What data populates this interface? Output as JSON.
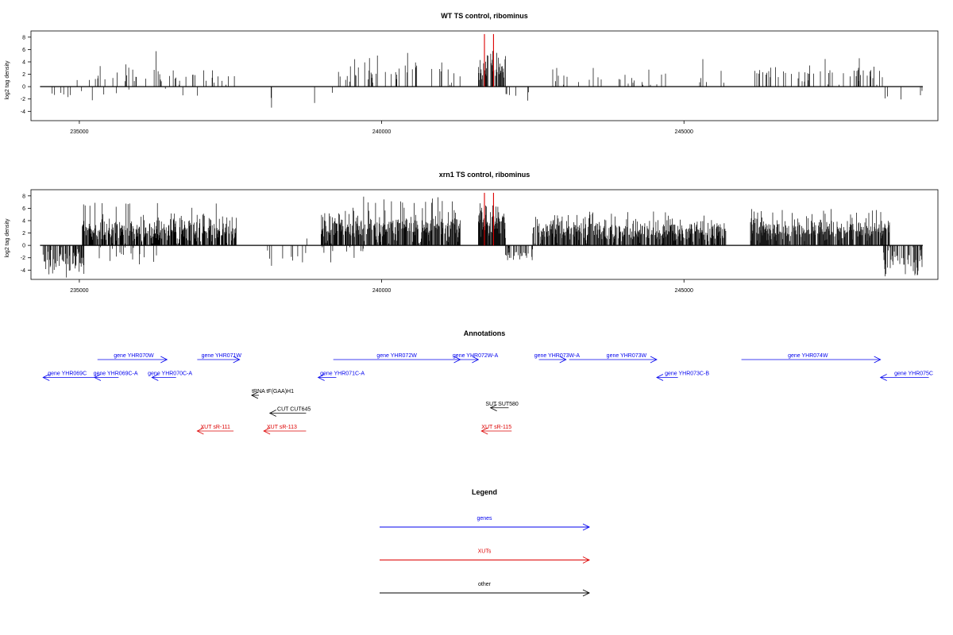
{
  "chart_data": [
    {
      "type": "bar",
      "title": "WT TS control, ribominus",
      "ylabel": "log2 tag density",
      "xlim": [
        234200,
        249200
      ],
      "ylim": [
        -5.5,
        9
      ],
      "x_ticks": [
        235000,
        240000,
        245000
      ],
      "y_ticks": [
        -4,
        -2,
        0,
        2,
        4,
        6,
        8
      ],
      "baseline": [
        234350,
        248950
      ],
      "highlight_lines": [
        {
          "x": 241700,
          "y": 8.5,
          "color": "#dd0000"
        },
        {
          "x": 241850,
          "y": 8.5,
          "color": "#dd0000"
        }
      ],
      "blocks": [
        {
          "x0": 234400,
          "x1": 235100,
          "dir": "down",
          "mean": 1.8,
          "sd": 0.7,
          "max": 3.2,
          "density": 0.06,
          "seed": 11
        },
        {
          "x0": 234950,
          "x1": 237650,
          "dir": "up",
          "mean": 1.8,
          "sd": 0.9,
          "max": 6.2,
          "density": 0.09,
          "seed": 12
        },
        {
          "x0": 235050,
          "x1": 237500,
          "dir": "down",
          "mean": 1.2,
          "sd": 0.6,
          "max": 2.5,
          "density": 0.015,
          "seed": 13
        },
        {
          "x0": 237800,
          "x1": 237900,
          "dir": "up",
          "mean": 0.9,
          "sd": 0.2,
          "max": 1.2,
          "density": 0.02,
          "seed": 14
        },
        {
          "x0": 238100,
          "x1": 238300,
          "dir": "down",
          "mean": 2.6,
          "sd": 0.6,
          "max": 3.4,
          "density": 0.02,
          "seed": 15
        },
        {
          "x0": 238700,
          "x1": 239300,
          "dir": "down",
          "mean": 1.8,
          "sd": 0.8,
          "max": 3.0,
          "density": 0.04,
          "seed": 16
        },
        {
          "x0": 239200,
          "x1": 241300,
          "dir": "up",
          "mean": 2.1,
          "sd": 1.0,
          "max": 5.5,
          "density": 0.12,
          "seed": 17
        },
        {
          "x0": 241600,
          "x1": 242050,
          "dir": "up",
          "mean": 3.4,
          "sd": 1.0,
          "max": 6.0,
          "density": 0.6,
          "seed": 18
        },
        {
          "x0": 242050,
          "x1": 242450,
          "dir": "down",
          "mean": 1.5,
          "sd": 0.6,
          "max": 2.6,
          "density": 0.08,
          "seed": 19
        },
        {
          "x0": 242600,
          "x1": 245700,
          "dir": "up",
          "mean": 1.5,
          "sd": 0.8,
          "max": 4.8,
          "density": 0.09,
          "seed": 20
        },
        {
          "x0": 246100,
          "x1": 248350,
          "dir": "up",
          "mean": 2.0,
          "sd": 0.9,
          "max": 4.8,
          "density": 0.13,
          "seed": 21
        },
        {
          "x0": 248300,
          "x1": 248950,
          "dir": "down",
          "mean": 1.6,
          "sd": 0.8,
          "max": 3.5,
          "density": 0.05,
          "seed": 22
        }
      ]
    },
    {
      "type": "bar",
      "title": "xrn1 TS control, ribominus",
      "ylabel": "log2 tag density",
      "xlim": [
        234200,
        249200
      ],
      "ylim": [
        -5.5,
        9
      ],
      "x_ticks": [
        235000,
        240000,
        245000
      ],
      "y_ticks": [
        -4,
        -2,
        0,
        2,
        4,
        6,
        8
      ],
      "baseline": [
        234350,
        248950
      ],
      "highlight_lines": [
        {
          "x": 241700,
          "y": 8.5,
          "color": "#dd0000"
        },
        {
          "x": 241850,
          "y": 8.5,
          "color": "#dd0000"
        }
      ],
      "blocks": [
        {
          "x0": 234400,
          "x1": 235100,
          "dir": "down",
          "mean": 2.6,
          "sd": 1.0,
          "max": 5.2,
          "density": 0.5,
          "seed": 31
        },
        {
          "x0": 235050,
          "x1": 237600,
          "dir": "up",
          "mean": 2.5,
          "sd": 1.1,
          "max": 7.0,
          "density": 0.7,
          "seed": 32
        },
        {
          "x0": 235100,
          "x1": 236300,
          "dir": "down",
          "mean": 1.6,
          "sd": 0.8,
          "max": 3.5,
          "density": 0.1,
          "seed": 33
        },
        {
          "x0": 238100,
          "x1": 238800,
          "dir": "down",
          "mean": 1.6,
          "sd": 0.8,
          "max": 3.7,
          "density": 0.1,
          "seed": 34
        },
        {
          "x0": 238400,
          "x1": 238900,
          "dir": "up",
          "mean": 1.5,
          "sd": 0.6,
          "max": 2.8,
          "density": 0.06,
          "seed": 35
        },
        {
          "x0": 239000,
          "x1": 241300,
          "dir": "up",
          "mean": 3.0,
          "sd": 1.2,
          "max": 8.0,
          "density": 0.75,
          "seed": 36
        },
        {
          "x0": 239000,
          "x1": 239700,
          "dir": "down",
          "mean": 1.5,
          "sd": 0.8,
          "max": 3.6,
          "density": 0.08,
          "seed": 37
        },
        {
          "x0": 241600,
          "x1": 242050,
          "dir": "up",
          "mean": 3.5,
          "sd": 1.3,
          "max": 7.0,
          "density": 0.9,
          "seed": 38
        },
        {
          "x0": 242050,
          "x1": 242500,
          "dir": "down",
          "mean": 1.6,
          "sd": 0.6,
          "max": 2.4,
          "density": 0.3,
          "seed": 39
        },
        {
          "x0": 242500,
          "x1": 245700,
          "dir": "up",
          "mean": 2.4,
          "sd": 1.0,
          "max": 5.5,
          "density": 0.7,
          "seed": 40
        },
        {
          "x0": 246100,
          "x1": 248400,
          "dir": "up",
          "mean": 2.6,
          "sd": 1.0,
          "max": 6.0,
          "density": 0.75,
          "seed": 41
        },
        {
          "x0": 248300,
          "x1": 248950,
          "dir": "down",
          "mean": 2.5,
          "sd": 1.1,
          "max": 5.0,
          "density": 0.5,
          "seed": 42
        }
      ]
    }
  ],
  "annotations": {
    "title": "Annotations",
    "xlim": [
      234200,
      249200
    ],
    "colors": {
      "gene": "#0000ee",
      "xut": "#dd0000",
      "other": "#000000"
    },
    "features": [
      {
        "label": "gene YHR069C",
        "kind": "gene",
        "start": 234400,
        "end": 235250,
        "strand": "-",
        "row": 1,
        "label_x": 234800
      },
      {
        "label": "gene YHR069C-A",
        "kind": "gene",
        "start": 235250,
        "end": 235650,
        "strand": "-",
        "row": 1,
        "label_x": 235600
      },
      {
        "label": "gene YHR070W",
        "kind": "gene",
        "start": 235300,
        "end": 236450,
        "strand": "+",
        "row": 0,
        "label_x": 235900
      },
      {
        "label": "gene YHR070C-A",
        "kind": "gene",
        "start": 236200,
        "end": 236600,
        "strand": "-",
        "row": 1,
        "label_x": 236500
      },
      {
        "label": "gene YHR071W",
        "kind": "gene",
        "start": 236950,
        "end": 237650,
        "strand": "+",
        "row": 0,
        "label_x": 237350
      },
      {
        "label": "tRNA tF(GAA)H1",
        "kind": "other",
        "start": 237850,
        "end": 237970,
        "strand": "-",
        "row": 2,
        "label_x": 238200
      },
      {
        "label": "CUT CUT645",
        "kind": "other",
        "start": 238150,
        "end": 238750,
        "strand": "-",
        "row": 3,
        "label_x": 238550
      },
      {
        "label": "XUT sR-111",
        "kind": "xut",
        "start": 236950,
        "end": 237550,
        "strand": "-",
        "row": 4,
        "label_x": 237250
      },
      {
        "label": "XUT sR-113",
        "kind": "xut",
        "start": 238050,
        "end": 238750,
        "strand": "-",
        "row": 4,
        "label_x": 238350
      },
      {
        "label": "gene YHR071C-A",
        "kind": "gene",
        "start": 238950,
        "end": 239250,
        "strand": "-",
        "row": 1,
        "label_x": 239350
      },
      {
        "label": "gene YHR072W",
        "kind": "gene",
        "start": 239200,
        "end": 241300,
        "strand": "+",
        "row": 0,
        "label_x": 240250
      },
      {
        "label": "gene YHR072W-A",
        "kind": "gene",
        "start": 241300,
        "end": 241600,
        "strand": "+",
        "row": 0,
        "label_x": 241550
      },
      {
        "label": "SUT SUT580",
        "kind": "other",
        "start": 241800,
        "end": 242100,
        "strand": "-",
        "row": 2.7,
        "label_x": 241990
      },
      {
        "label": "XUT sR-115",
        "kind": "xut",
        "start": 241650,
        "end": 242150,
        "strand": "-",
        "row": 4,
        "label_x": 241900
      },
      {
        "label": "gene YHR073W-A",
        "kind": "gene",
        "start": 242600,
        "end": 243050,
        "strand": "+",
        "row": 0,
        "label_x": 242900
      },
      {
        "label": "gene YHR073W",
        "kind": "gene",
        "start": 243100,
        "end": 244550,
        "strand": "+",
        "row": 0,
        "label_x": 244050
      },
      {
        "label": "gene YHR073C-B",
        "kind": "gene",
        "start": 244550,
        "end": 244900,
        "strand": "-",
        "row": 1,
        "label_x": 245050
      },
      {
        "label": "gene YHR074W",
        "kind": "gene",
        "start": 245950,
        "end": 248250,
        "strand": "+",
        "row": 0,
        "label_x": 247050
      },
      {
        "label": "gene YHR075C",
        "kind": "gene",
        "start": 248250,
        "end": 249050,
        "strand": "-",
        "row": 1,
        "label_x": 248800
      }
    ]
  },
  "legend": {
    "title": "Legend",
    "items": [
      {
        "label": "genes",
        "kind": "gene"
      },
      {
        "label": "XUTs",
        "kind": "xut"
      },
      {
        "label": "other",
        "kind": "other"
      }
    ]
  }
}
